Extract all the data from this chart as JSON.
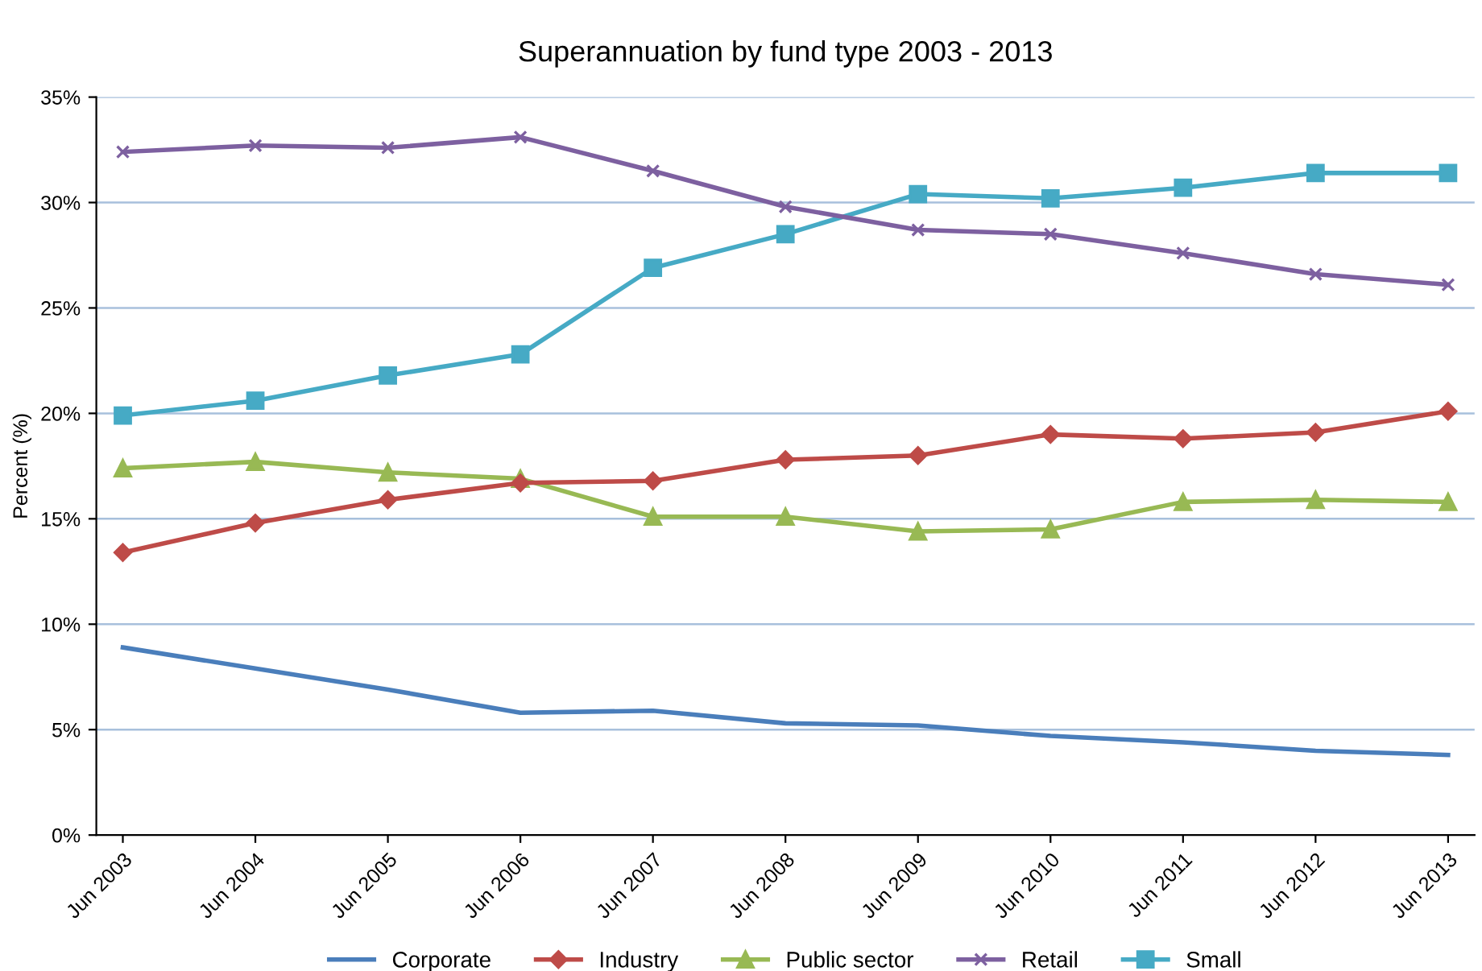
{
  "chart_data": {
    "type": "line",
    "title": "Superannuation by fund type 2003 - 2013",
    "ylabel": "Percent (%)",
    "categories": [
      "Jun 2003",
      "Jun 2004",
      "Jun 2005",
      "Jun 2006",
      "Jun 2007",
      "Jun 2008",
      "Jun 2009",
      "Jun 2010",
      "Jun 2011",
      "Jun 2012",
      "Jun 2013"
    ],
    "series": [
      {
        "name": "Corporate",
        "color": "#4a7ebb",
        "marker": "none",
        "values": [
          8.9,
          7.9,
          6.9,
          5.8,
          5.9,
          5.3,
          5.2,
          4.7,
          4.4,
          4.0,
          3.8
        ]
      },
      {
        "name": "Industry",
        "color": "#be4b48",
        "marker": "diamond",
        "values": [
          13.4,
          14.8,
          15.9,
          16.7,
          16.8,
          17.8,
          18.0,
          19.0,
          18.8,
          19.1,
          20.1
        ]
      },
      {
        "name": "Public sector",
        "color": "#98b954",
        "marker": "triangle",
        "values": [
          17.4,
          17.7,
          17.2,
          16.9,
          15.1,
          15.1,
          14.4,
          14.5,
          15.8,
          15.9,
          15.8
        ]
      },
      {
        "name": "Retail",
        "color": "#7d60a0",
        "marker": "cross",
        "values": [
          32.4,
          32.7,
          32.6,
          33.1,
          31.5,
          29.8,
          28.7,
          28.5,
          27.6,
          26.6,
          26.1
        ]
      },
      {
        "name": "Small",
        "color": "#46aac5",
        "marker": "square",
        "values": [
          19.9,
          20.6,
          21.8,
          22.8,
          26.9,
          28.5,
          30.4,
          30.2,
          30.7,
          31.4,
          31.4
        ]
      }
    ],
    "ylim": [
      0,
      35
    ],
    "yticks": [
      {
        "value": 0,
        "label": "0%"
      },
      {
        "value": 5,
        "label": "5%"
      },
      {
        "value": 10,
        "label": "10%"
      },
      {
        "value": 15,
        "label": "15%"
      },
      {
        "value": 20,
        "label": "20%"
      },
      {
        "value": 25,
        "label": "25%"
      },
      {
        "value": 30,
        "label": "30%"
      },
      {
        "value": 35,
        "label": "35%"
      }
    ],
    "grid": "y",
    "legend": "bottom",
    "line_style": "solid"
  }
}
